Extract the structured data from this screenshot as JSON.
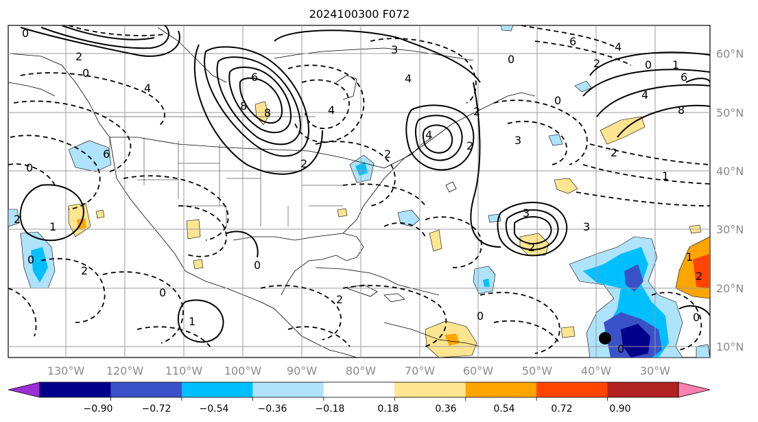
{
  "title": "2024100300 F072",
  "lon_labels": [
    "130°W",
    "120°W",
    "110°W",
    "100°W",
    "90°W",
    "80°W",
    "70°W",
    "60°W",
    "50°W",
    "40°W",
    "30°W"
  ],
  "lat_labels": [
    "60°N",
    "50°N",
    "40°N",
    "30°N",
    "20°N",
    "10°N"
  ],
  "colorbar": {
    "colors": [
      "#9b30d6",
      "#00008b",
      "#3a52c9",
      "#00bfff",
      "#aee3fb",
      "#ffffff",
      "#ffe58f",
      "#ffa500",
      "#ff4500",
      "#b22222",
      "#ff80b0"
    ],
    "ticks": [
      "−0.90",
      "−0.72",
      "−0.54",
      "−0.36",
      "−0.18",
      "0.18",
      "0.36",
      "0.54",
      "0.72",
      "0.90"
    ]
  },
  "contour_labels": [
    "0",
    "2",
    "0",
    "4",
    "6",
    "8",
    "4",
    "2",
    "0",
    "2",
    "3",
    "6",
    "4",
    "2",
    "8",
    "6",
    "4",
    "2",
    "0",
    "2",
    "4",
    "3",
    "2",
    "0",
    "2",
    "0",
    "1",
    "0",
    "2",
    "1",
    "3",
    "2",
    "0",
    "1",
    "0",
    "2",
    "0",
    "8",
    "6",
    "4",
    "2",
    "1",
    "0",
    "0",
    "1",
    "3"
  ],
  "colors": {
    "land": "#000000",
    "grid": "#9a9a9a",
    "solid": "#000000"
  }
}
